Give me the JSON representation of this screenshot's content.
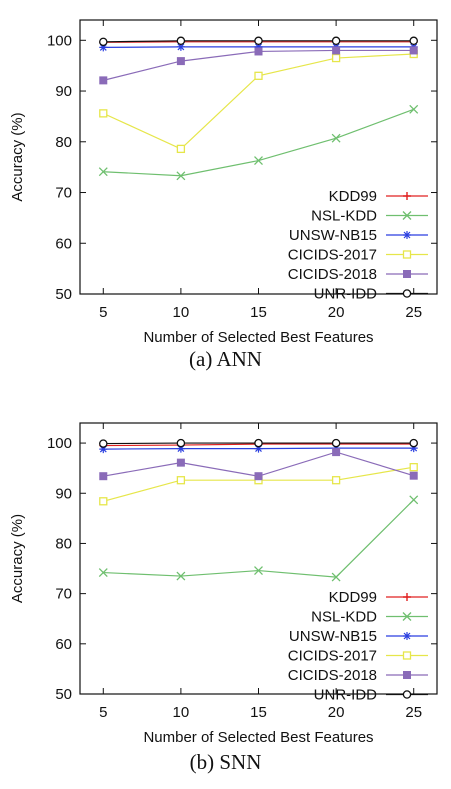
{
  "chart_data": [
    {
      "type": "line",
      "caption": "(a)  ANN",
      "xlabel": "Number of Selected Best Features",
      "ylabel": "Accuracy (%)",
      "x": [
        5,
        10,
        15,
        20,
        25
      ],
      "xticks": [
        "5",
        "10",
        "15",
        "20",
        "25"
      ],
      "yticks": [
        "50",
        "60",
        "70",
        "80",
        "90",
        "100"
      ],
      "xlim": [
        3.5,
        26.5
      ],
      "ylim": [
        50,
        104
      ],
      "grid": false,
      "legend_position": "bottom-right",
      "series": [
        {
          "name": "KDD99",
          "color": "#e02020",
          "marker": "plus",
          "values": [
            99.6,
            99.7,
            99.7,
            99.7,
            99.7
          ]
        },
        {
          "name": "NSL-KDD",
          "color": "#6fbf6f",
          "marker": "cross",
          "values": [
            74.1,
            73.3,
            76.3,
            80.7,
            86.4
          ]
        },
        {
          "name": "UNSW-NB15",
          "color": "#2b3fe0",
          "marker": "star",
          "values": [
            98.6,
            98.7,
            98.7,
            98.7,
            98.7
          ]
        },
        {
          "name": "CICIDS-2017",
          "color": "#e6e64a",
          "marker": "square-open",
          "values": [
            85.6,
            78.6,
            93.0,
            96.5,
            97.3
          ]
        },
        {
          "name": "CICIDS-2018",
          "color": "#8a6bb8",
          "marker": "square-filled",
          "values": [
            92.1,
            95.9,
            97.8,
            98.0,
            98.0
          ]
        },
        {
          "name": "UNR-IDD",
          "color": "#111111",
          "marker": "circle-open",
          "values": [
            99.7,
            99.9,
            99.9,
            99.9,
            99.9
          ]
        }
      ]
    },
    {
      "type": "line",
      "caption": "(b)  SNN",
      "xlabel": "Number of Selected Best Features",
      "ylabel": "Accuracy (%)",
      "x": [
        5,
        10,
        15,
        20,
        25
      ],
      "xticks": [
        "5",
        "10",
        "15",
        "20",
        "25"
      ],
      "yticks": [
        "50",
        "60",
        "70",
        "80",
        "90",
        "100"
      ],
      "xlim": [
        3.5,
        26.5
      ],
      "ylim": [
        50,
        104
      ],
      "grid": false,
      "legend_position": "bottom-right",
      "series": [
        {
          "name": "KDD99",
          "color": "#e02020",
          "marker": "plus",
          "values": [
            99.5,
            99.6,
            99.8,
            99.8,
            99.8
          ]
        },
        {
          "name": "NSL-KDD",
          "color": "#6fbf6f",
          "marker": "cross",
          "values": [
            74.2,
            73.5,
            74.6,
            73.3,
            88.7
          ]
        },
        {
          "name": "UNSW-NB15",
          "color": "#2b3fe0",
          "marker": "star",
          "values": [
            98.8,
            98.9,
            98.9,
            99.0,
            99.0
          ]
        },
        {
          "name": "CICIDS-2017",
          "color": "#e6e64a",
          "marker": "square-open",
          "values": [
            88.4,
            92.6,
            92.6,
            92.6,
            95.2
          ]
        },
        {
          "name": "CICIDS-2018",
          "color": "#8a6bb8",
          "marker": "square-filled",
          "values": [
            93.4,
            96.1,
            93.4,
            98.2,
            93.5
          ]
        },
        {
          "name": "UNR-IDD",
          "color": "#111111",
          "marker": "circle-open",
          "values": [
            99.9,
            100.0,
            100.0,
            100.0,
            100.0
          ]
        }
      ]
    }
  ]
}
